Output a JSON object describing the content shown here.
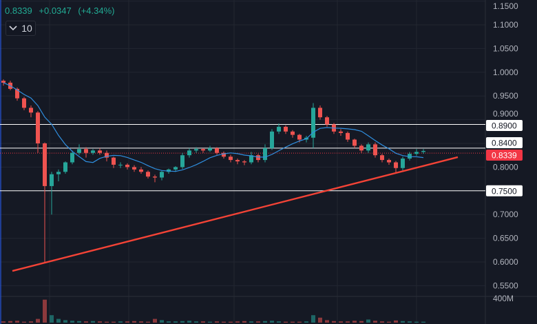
{
  "header": {
    "price": "0.8339",
    "change": "+0.0347",
    "change_pct": "(+4.34%)",
    "collapse_count": "10",
    "collapse_icon": "chevron-down-icon"
  },
  "colors": {
    "background": "#151924",
    "grid": "#222631",
    "up": "#26a69a",
    "down": "#ef5350",
    "ma": "#2f8fe0",
    "trendline": "#f44336",
    "hline": "#ffffff",
    "last_price_badge": "#f23645"
  },
  "chart_data": {
    "type": "candlestick",
    "y_axis": {
      "range": [
        0.53,
        1.115
      ],
      "ticks": [
        "1.1000",
        "1.0500",
        "1.0000",
        "0.9500",
        "0.8000",
        "0.7000",
        "0.6500",
        "0.6000",
        "0.5500"
      ],
      "partially_hidden_ticks": [
        "1.1500",
        "0.9000"
      ]
    },
    "grid": true,
    "candles": {
      "open": [
        0.982,
        0.978,
        0.965,
        0.945,
        0.925,
        0.915,
        0.85,
        0.76,
        0.785,
        0.79,
        0.81,
        0.83,
        0.838,
        0.83,
        0.835,
        0.83,
        0.82,
        0.805,
        0.805,
        0.8,
        0.795,
        0.79,
        0.78,
        0.778,
        0.79,
        0.795,
        0.8,
        0.825,
        0.835,
        0.838,
        0.835,
        0.84,
        0.83,
        0.822,
        0.815,
        0.812,
        0.81,
        0.825,
        0.815,
        0.84,
        0.875,
        0.885,
        0.875,
        0.868,
        0.858,
        0.862,
        0.925,
        0.905,
        0.89,
        0.875,
        0.872,
        0.858,
        0.845,
        0.835,
        0.848,
        0.825,
        0.815,
        0.81,
        0.798,
        0.818,
        0.828,
        0.832
      ],
      "high": [
        0.985,
        0.982,
        0.968,
        0.948,
        0.93,
        0.918,
        0.852,
        0.79,
        0.795,
        0.812,
        0.835,
        0.848,
        0.842,
        0.838,
        0.84,
        0.835,
        0.822,
        0.81,
        0.808,
        0.804,
        0.8,
        0.793,
        0.784,
        0.792,
        0.797,
        0.802,
        0.83,
        0.84,
        0.842,
        0.84,
        0.845,
        0.842,
        0.833,
        0.826,
        0.818,
        0.815,
        0.832,
        0.828,
        0.848,
        0.88,
        0.892,
        0.888,
        0.878,
        0.87,
        0.866,
        0.935,
        0.93,
        0.908,
        0.893,
        0.88,
        0.875,
        0.86,
        0.848,
        0.852,
        0.852,
        0.828,
        0.818,
        0.813,
        0.822,
        0.832,
        0.838,
        0.838
      ],
      "low": [
        0.972,
        0.962,
        0.94,
        0.92,
        0.905,
        0.83,
        0.6,
        0.7,
        0.77,
        0.786,
        0.806,
        0.826,
        0.82,
        0.826,
        0.826,
        0.812,
        0.798,
        0.798,
        0.795,
        0.79,
        0.786,
        0.776,
        0.768,
        0.772,
        0.786,
        0.79,
        0.796,
        0.82,
        0.83,
        0.83,
        0.832,
        0.826,
        0.818,
        0.81,
        0.806,
        0.804,
        0.806,
        0.81,
        0.81,
        0.836,
        0.87,
        0.87,
        0.862,
        0.852,
        0.852,
        0.84,
        0.9,
        0.885,
        0.87,
        0.866,
        0.853,
        0.84,
        0.83,
        0.83,
        0.82,
        0.81,
        0.805,
        0.786,
        0.793,
        0.814,
        0.824,
        0.828
      ],
      "close": [
        0.978,
        0.965,
        0.945,
        0.925,
        0.915,
        0.85,
        0.76,
        0.785,
        0.79,
        0.81,
        0.83,
        0.838,
        0.83,
        0.835,
        0.83,
        0.82,
        0.805,
        0.805,
        0.8,
        0.795,
        0.79,
        0.78,
        0.778,
        0.79,
        0.795,
        0.8,
        0.825,
        0.835,
        0.838,
        0.835,
        0.84,
        0.83,
        0.822,
        0.815,
        0.812,
        0.81,
        0.825,
        0.815,
        0.84,
        0.875,
        0.885,
        0.875,
        0.868,
        0.858,
        0.862,
        0.925,
        0.905,
        0.89,
        0.875,
        0.872,
        0.858,
        0.845,
        0.835,
        0.848,
        0.825,
        0.815,
        0.81,
        0.798,
        0.818,
        0.828,
        0.832,
        0.834
      ]
    },
    "volume": {
      "axis_label": "400M",
      "max": 400,
      "values": [
        20,
        25,
        30,
        15,
        20,
        60,
        370,
        120,
        60,
        40,
        30,
        25,
        20,
        25,
        20,
        15,
        15,
        20,
        20,
        25,
        20,
        15,
        60,
        40,
        20,
        20,
        25,
        30,
        20,
        20,
        15,
        20,
        15,
        15,
        20,
        25,
        20,
        20,
        25,
        30,
        20,
        15,
        15,
        15,
        20,
        120,
        80,
        40,
        25,
        20,
        20,
        30,
        25,
        50,
        30,
        20,
        15,
        35,
        25,
        20,
        15,
        15
      ]
    },
    "moving_average": {
      "period": 8
    },
    "horizontal_lines": [
      {
        "price": 0.89,
        "label": "0.8900"
      },
      {
        "price": 0.84,
        "label": "0.8400"
      },
      {
        "price": 0.75,
        "label": "0.7500"
      }
    ],
    "last_price": {
      "price": 0.8339,
      "label": "0.8339"
    },
    "trendline": {
      "from": {
        "bar": 1.3,
        "price": 0.581
      },
      "to": {
        "bar": 66,
        "price": 0.821
      }
    }
  }
}
